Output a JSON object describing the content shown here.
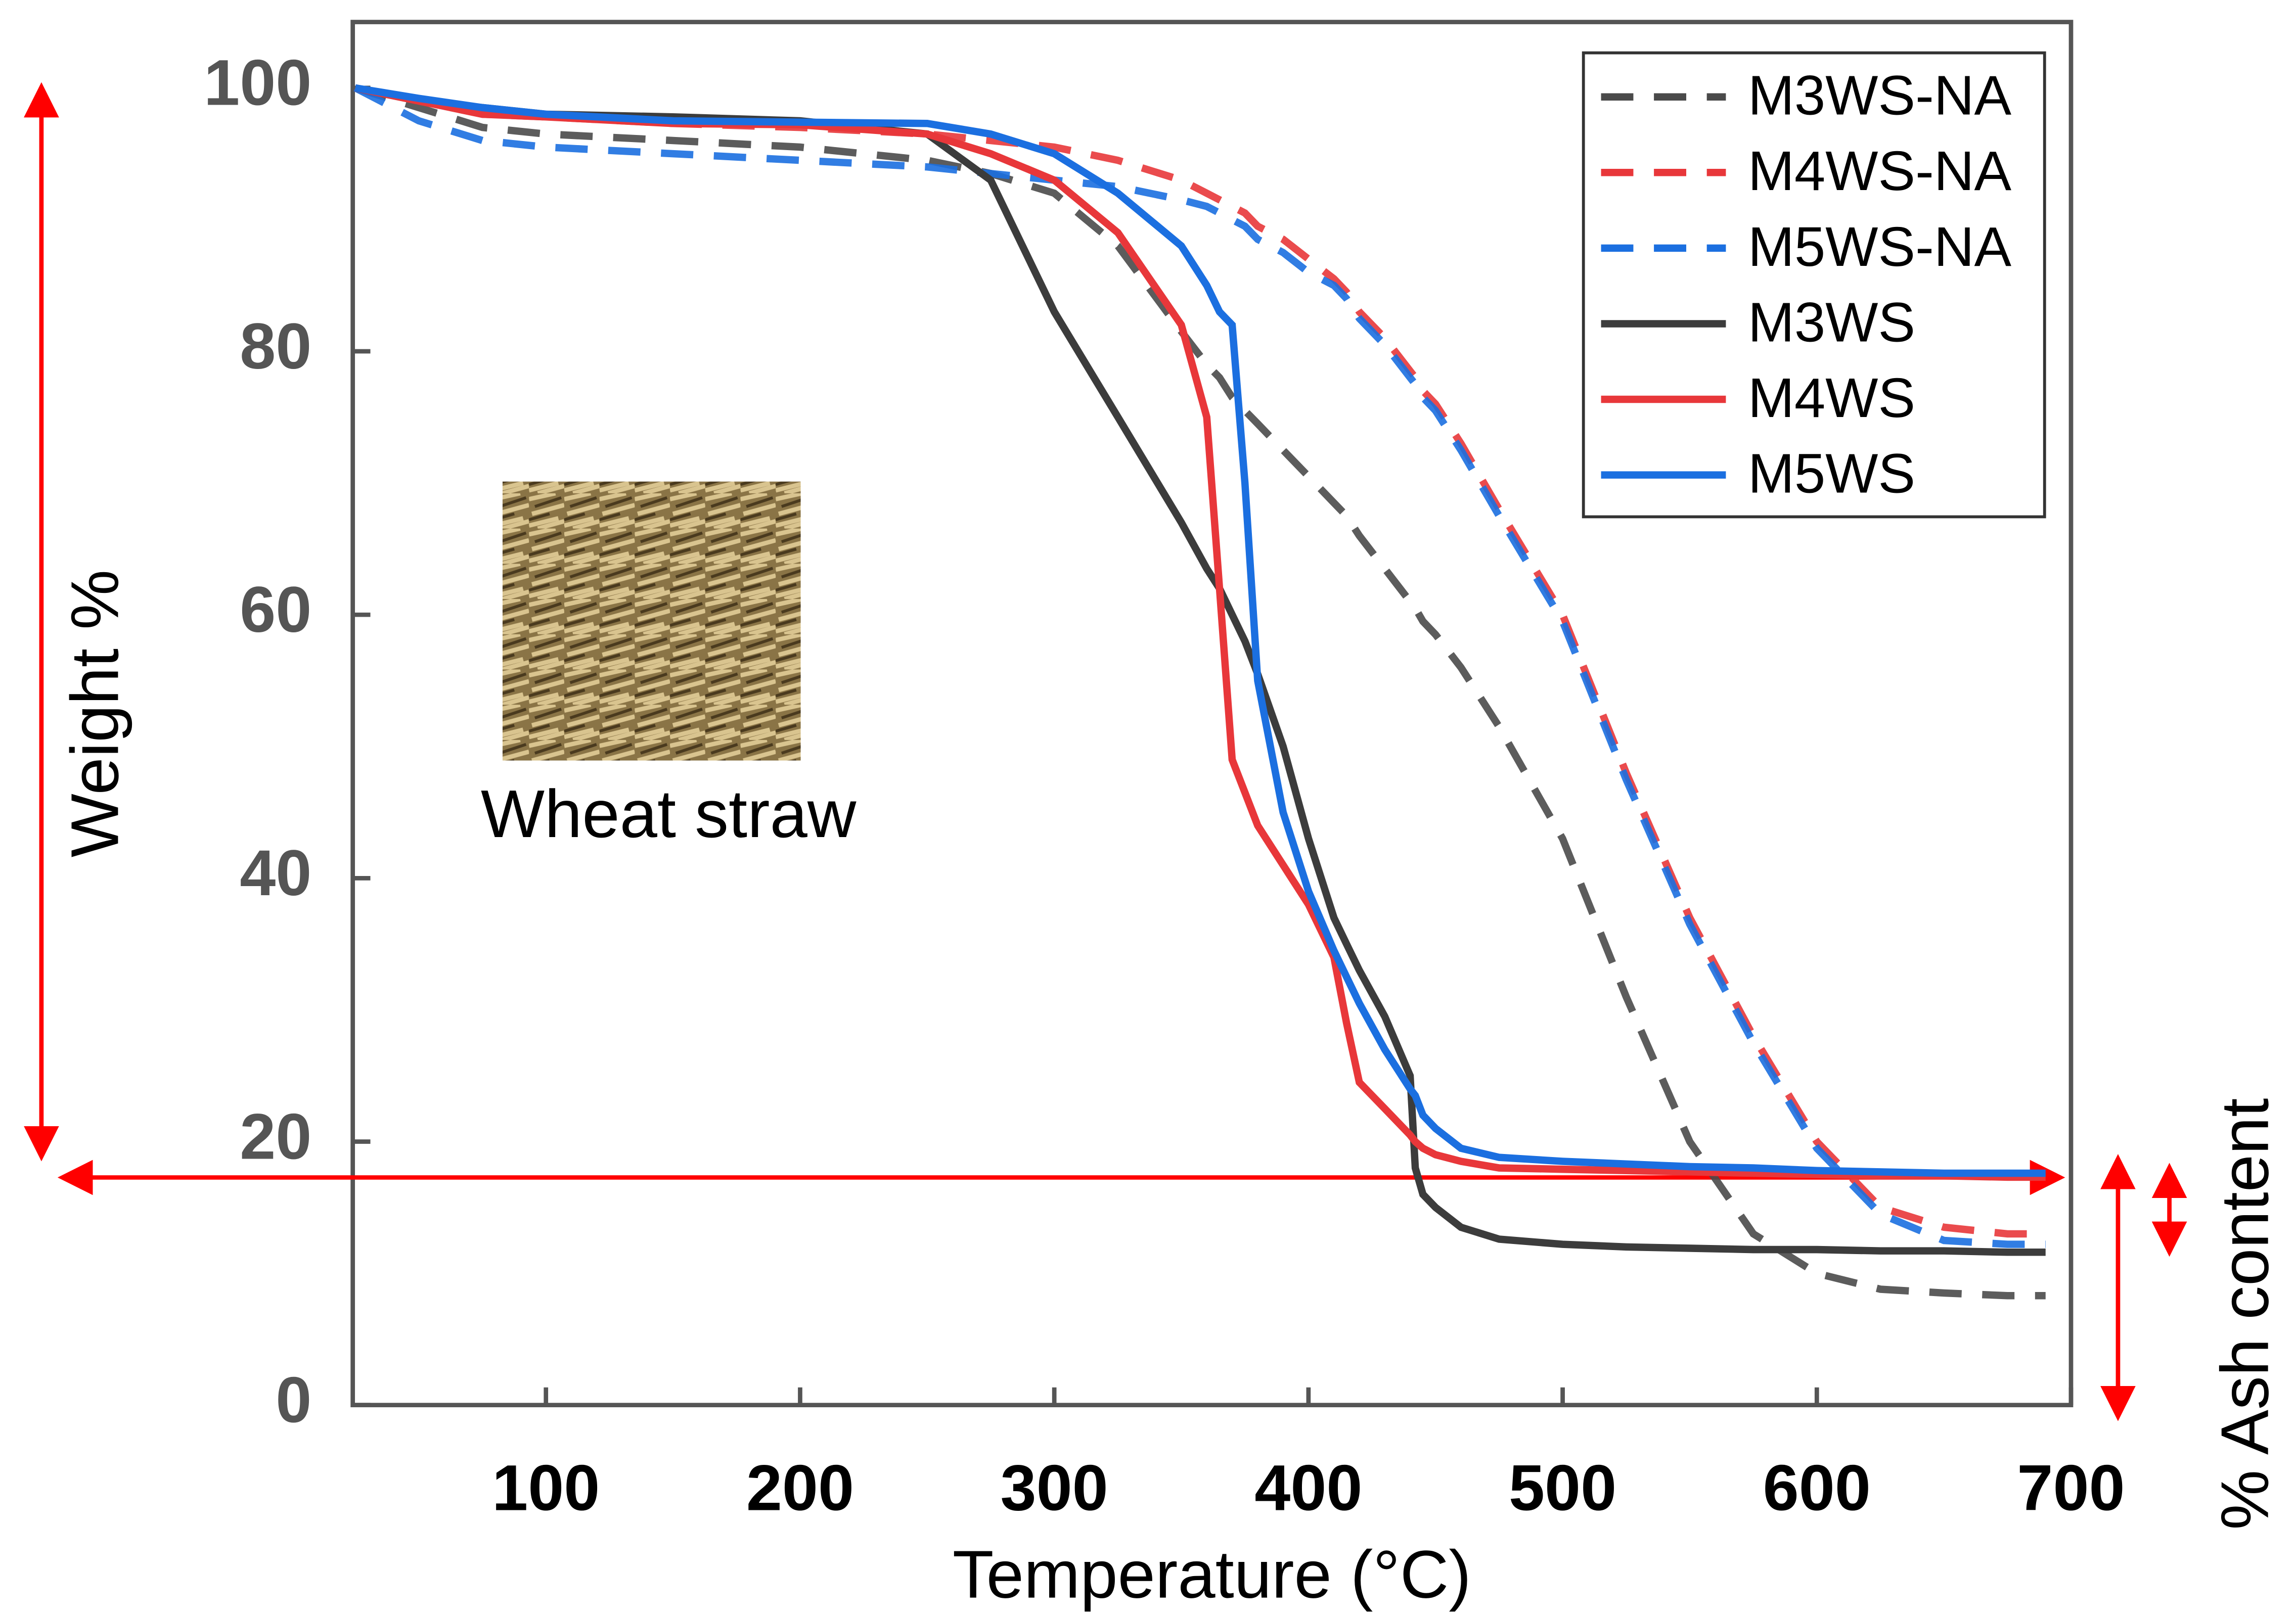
{
  "chart_data": {
    "type": "line",
    "x_label": "Temperature (°C)",
    "y_label": "Weight %",
    "y2_label": "% Ash content",
    "annotation": "Wheat straw",
    "x": [
      25,
      50,
      75,
      100,
      150,
      200,
      250,
      275,
      300,
      325,
      350,
      360,
      365,
      370,
      375,
      380,
      390,
      400,
      410,
      415,
      420,
      430,
      440,
      442,
      445,
      450,
      460,
      475,
      500,
      525,
      550,
      575,
      600,
      625,
      650,
      675,
      690
    ],
    "series": [
      {
        "name": "M3WS-NA",
        "color": "#4a4a4a",
        "dashed": true,
        "values": [
          100,
          98.5,
          97,
          96.5,
          96,
          95.5,
          94.5,
          93.5,
          92,
          88,
          81.5,
          79,
          78,
          76.5,
          75.5,
          74.5,
          72.5,
          70.5,
          68.5,
          67.5,
          66,
          63.5,
          61,
          60.5,
          59.5,
          58.5,
          56,
          51.5,
          43,
          31,
          20,
          13,
          10,
          8.8,
          8.5,
          8.3,
          8.3
        ]
      },
      {
        "name": "M4WS-NA",
        "color": "#e8373a",
        "dashed": true,
        "values": [
          100,
          99,
          98,
          97.8,
          97.3,
          97,
          96.5,
          96,
          95.5,
          94.5,
          93,
          92,
          91.5,
          91,
          90.5,
          89.5,
          88.5,
          87,
          85.5,
          84.5,
          83,
          81,
          78.5,
          78,
          77,
          76,
          73,
          68,
          60,
          48,
          37,
          28,
          20,
          15,
          13.5,
          13,
          13
        ]
      },
      {
        "name": "M5WS-NA",
        "color": "#1b6fe0",
        "dashed": true,
        "values": [
          100,
          97.5,
          96,
          95.5,
          95,
          94.5,
          94,
          93.5,
          93,
          92.5,
          91.5,
          91,
          90.5,
          90,
          89.5,
          88.5,
          87.5,
          86,
          85,
          84,
          82.5,
          80.5,
          78,
          77.5,
          76.5,
          75.5,
          72.5,
          67.5,
          59.5,
          47.5,
          36.5,
          27.5,
          19.5,
          14.5,
          12.5,
          12.2,
          12.2
        ]
      },
      {
        "name": "M3WS",
        "color": "#3c3c3c",
        "dashed": false,
        "values": [
          100,
          99,
          98.5,
          98,
          97.8,
          97.5,
          96.5,
          93,
          83,
          75,
          67,
          63.5,
          62,
          60,
          58,
          55.5,
          50,
          43,
          37,
          35,
          33,
          29.5,
          25,
          18,
          16,
          15,
          13.5,
          12.6,
          12.2,
          12,
          11.9,
          11.8,
          11.8,
          11.7,
          11.7,
          11.6,
          11.6
        ]
      },
      {
        "name": "M4WS",
        "color": "#e8373a",
        "dashed": false,
        "values": [
          100,
          99,
          98,
          97.8,
          97.3,
          97.2,
          96.5,
          95,
          93,
          89,
          82,
          75,
          62,
          49,
          46.5,
          44,
          41,
          38,
          34,
          29,
          24.5,
          22.5,
          20.5,
          20,
          19.5,
          19,
          18.5,
          18,
          17.9,
          17.8,
          17.7,
          17.6,
          17.5,
          17.4,
          17.4,
          17.3,
          17.3
        ]
      },
      {
        "name": "M5WS",
        "color": "#1b6fe0",
        "dashed": false,
        "values": [
          100,
          99.2,
          98.5,
          98,
          97.5,
          97.4,
          97.3,
          96.5,
          95,
          92,
          88,
          85,
          83,
          82,
          70,
          55,
          45,
          39,
          34.5,
          32.5,
          30.5,
          27,
          24,
          23.5,
          22,
          21,
          19.5,
          18.8,
          18.5,
          18.3,
          18.1,
          18,
          17.8,
          17.7,
          17.6,
          17.6,
          17.6
        ]
      }
    ],
    "xlim": [
      24,
      700
    ],
    "xticks": [
      100,
      200,
      300,
      400,
      500,
      600,
      700
    ],
    "ylim": [
      0,
      105
    ],
    "yticks": [
      0,
      20,
      40,
      60,
      80,
      100
    ],
    "legend": "top-right"
  }
}
